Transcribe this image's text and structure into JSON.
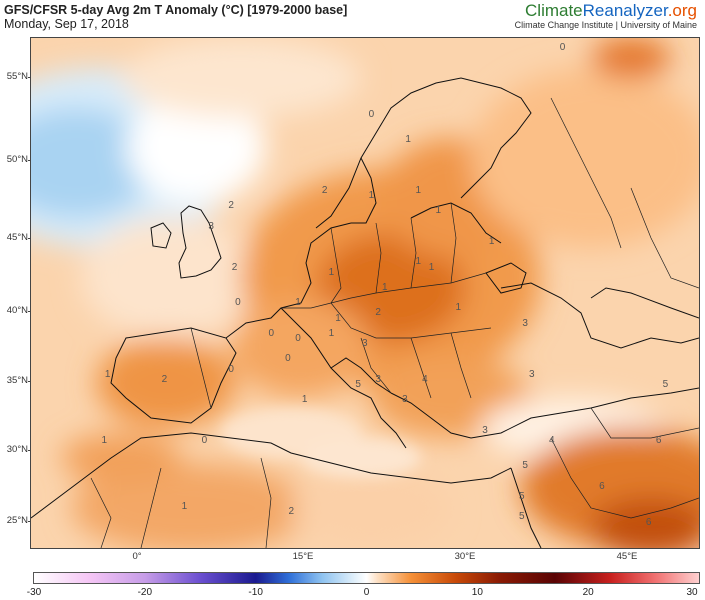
{
  "header": {
    "title": "GFS/CFSR 5-day Avg 2m T Anomaly (°C) [1979-2000 base]",
    "date": "Monday, Sep 17, 2018"
  },
  "brand": {
    "name_part1": "Climate",
    "name_part2": "Reanalyzer",
    "name_part3": ".org",
    "tagline": "Climate Change Institute | University of Maine"
  },
  "map": {
    "lat_labels": [
      "55°N",
      "50°N",
      "45°N",
      "40°N",
      "35°N",
      "30°N",
      "25°N"
    ],
    "lon_labels": [
      "0°",
      "15°E",
      "30°E",
      "45°E"
    ],
    "contour_labels": [
      {
        "text": "0",
        "xf": 0.796,
        "yf": 0.02
      },
      {
        "text": "0",
        "xf": 0.51,
        "yf": 0.15
      },
      {
        "text": "1",
        "xf": 0.565,
        "yf": 0.2
      },
      {
        "text": "2",
        "xf": 0.44,
        "yf": 0.3
      },
      {
        "text": "1",
        "xf": 0.51,
        "yf": 0.31
      },
      {
        "text": "1",
        "xf": 0.58,
        "yf": 0.3
      },
      {
        "text": "1",
        "xf": 0.61,
        "yf": 0.34
      },
      {
        "text": "1",
        "xf": 0.69,
        "yf": 0.4
      },
      {
        "text": "1",
        "xf": 0.58,
        "yf": 0.44
      },
      {
        "text": "1",
        "xf": 0.6,
        "yf": 0.45
      },
      {
        "text": "1",
        "xf": 0.45,
        "yf": 0.46
      },
      {
        "text": "1",
        "xf": 0.53,
        "yf": 0.49
      },
      {
        "text": "2",
        "xf": 0.3,
        "yf": 0.33
      },
      {
        "text": "3",
        "xf": 0.27,
        "yf": 0.37
      },
      {
        "text": "2",
        "xf": 0.305,
        "yf": 0.45
      },
      {
        "text": "0",
        "xf": 0.31,
        "yf": 0.52
      },
      {
        "text": "1",
        "xf": 0.4,
        "yf": 0.52
      },
      {
        "text": "1",
        "xf": 0.46,
        "yf": 0.55
      },
      {
        "text": "2",
        "xf": 0.52,
        "yf": 0.54
      },
      {
        "text": "1",
        "xf": 0.64,
        "yf": 0.53
      },
      {
        "text": "3",
        "xf": 0.74,
        "yf": 0.56
      },
      {
        "text": "0",
        "xf": 0.36,
        "yf": 0.58
      },
      {
        "text": "0",
        "xf": 0.4,
        "yf": 0.59
      },
      {
        "text": "1",
        "xf": 0.45,
        "yf": 0.58
      },
      {
        "text": "3",
        "xf": 0.5,
        "yf": 0.6
      },
      {
        "text": "0",
        "xf": 0.385,
        "yf": 0.63
      },
      {
        "text": "2",
        "xf": 0.2,
        "yf": 0.67
      },
      {
        "text": "0",
        "xf": 0.3,
        "yf": 0.65
      },
      {
        "text": "5",
        "xf": 0.49,
        "yf": 0.68
      },
      {
        "text": "3",
        "xf": 0.52,
        "yf": 0.67
      },
      {
        "text": "4",
        "xf": 0.59,
        "yf": 0.67
      },
      {
        "text": "3",
        "xf": 0.75,
        "yf": 0.66
      },
      {
        "text": "5",
        "xf": 0.95,
        "yf": 0.68
      },
      {
        "text": "1",
        "xf": 0.115,
        "yf": 0.66
      },
      {
        "text": "1",
        "xf": 0.41,
        "yf": 0.71
      },
      {
        "text": "3",
        "xf": 0.56,
        "yf": 0.71
      },
      {
        "text": "1",
        "xf": 0.11,
        "yf": 0.79
      },
      {
        "text": "0",
        "xf": 0.26,
        "yf": 0.79
      },
      {
        "text": "3",
        "xf": 0.68,
        "yf": 0.77
      },
      {
        "text": "4",
        "xf": 0.78,
        "yf": 0.79
      },
      {
        "text": "6",
        "xf": 0.94,
        "yf": 0.79
      },
      {
        "text": "5",
        "xf": 0.74,
        "yf": 0.84
      },
      {
        "text": "1",
        "xf": 0.23,
        "yf": 0.92
      },
      {
        "text": "2",
        "xf": 0.39,
        "yf": 0.93
      },
      {
        "text": "5",
        "xf": 0.735,
        "yf": 0.9
      },
      {
        "text": "5",
        "xf": 0.735,
        "yf": 0.94
      },
      {
        "text": "6",
        "xf": 0.855,
        "yf": 0.88
      },
      {
        "text": "6",
        "xf": 0.925,
        "yf": 0.95
      }
    ]
  },
  "colorbar": {
    "ticks": [
      "-30",
      "-20",
      "-10",
      "0",
      "10",
      "20",
      "30"
    ],
    "stops": [
      {
        "v": -30,
        "color": "#ffffff"
      },
      {
        "v": -25,
        "color": "#f5c6f5"
      },
      {
        "v": -20,
        "color": "#c79de8"
      },
      {
        "v": -15,
        "color": "#6b4fd0"
      },
      {
        "v": -10,
        "color": "#1a1a8f"
      },
      {
        "v": -7,
        "color": "#2f6fd8"
      },
      {
        "v": -4,
        "color": "#8fc3f0"
      },
      {
        "v": -1,
        "color": "#e3f1fb"
      },
      {
        "v": 0,
        "color": "#ffffff"
      },
      {
        "v": 1,
        "color": "#fde0c4"
      },
      {
        "v": 4,
        "color": "#f59038"
      },
      {
        "v": 8,
        "color": "#c84a08"
      },
      {
        "v": 12,
        "color": "#8a1a04"
      },
      {
        "v": 17,
        "color": "#5a0404"
      },
      {
        "v": 22,
        "color": "#c8201e"
      },
      {
        "v": 26,
        "color": "#f07070"
      },
      {
        "v": 30,
        "color": "#ffd0d0"
      }
    ]
  }
}
